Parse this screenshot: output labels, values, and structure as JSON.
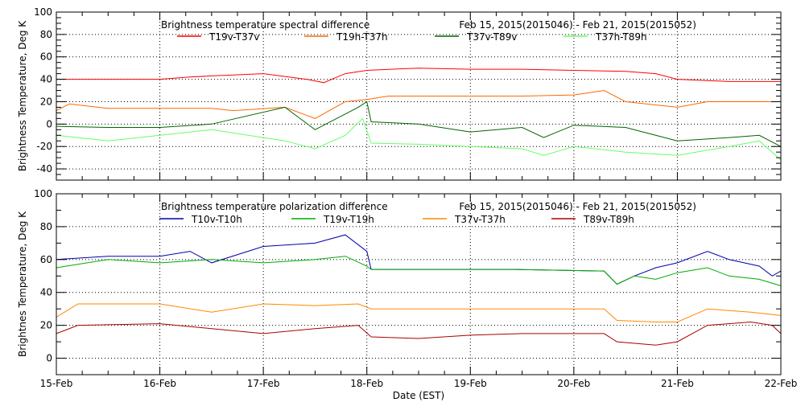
{
  "xlabel": "Date (EST)",
  "x_ticks": [
    "15-Feb",
    "16-Feb",
    "17-Feb",
    "18-Feb",
    "19-Feb",
    "20-Feb",
    "21-Feb",
    "22-Feb"
  ],
  "chart_data": [
    {
      "type": "line",
      "title": "Brightness temperature spectral difference",
      "date_range": "Feb 15, 2015(2015046) - Feb 21, 2015(2015052)",
      "ylabel": "Brightness Temperature, Deg K",
      "xlim": [
        "2015-02-15T00:00",
        "2015-02-22T00:00"
      ],
      "ylim": [
        -50,
        100
      ],
      "y_ticks": [
        "100",
        "80",
        "60",
        "40",
        "20",
        "0",
        "-20",
        "-40"
      ],
      "grid": true,
      "legend_placement": "top",
      "series": [
        {
          "name": "T19v-T37v",
          "color": "#ff0000",
          "points": [
            [
              "2015-02-15T00:00",
              40
            ],
            [
              "2015-02-15T12:00",
              40
            ],
            [
              "2015-02-16T00:00",
              40
            ],
            [
              "2015-02-16T07:00",
              42
            ],
            [
              "2015-02-16T12:00",
              43
            ],
            [
              "2015-02-17T00:00",
              45
            ],
            [
              "2015-02-17T10:00",
              40
            ],
            [
              "2015-02-17T14:00",
              37
            ],
            [
              "2015-02-17T19:00",
              45
            ],
            [
              "2015-02-18T00:00",
              48
            ],
            [
              "2015-02-18T12:00",
              50
            ],
            [
              "2015-02-19T00:00",
              49
            ],
            [
              "2015-02-19T12:00",
              49
            ],
            [
              "2015-02-20T00:00",
              48
            ],
            [
              "2015-02-20T12:00",
              47
            ],
            [
              "2015-02-20T19:00",
              45
            ],
            [
              "2015-02-21T00:00",
              40
            ],
            [
              "2015-02-21T12:00",
              38
            ],
            [
              "2015-02-22T00:00",
              38
            ]
          ]
        },
        {
          "name": "T19h-T37h",
          "color": "#ff6600",
          "points": [
            [
              "2015-02-15T00:00",
              12
            ],
            [
              "2015-02-15T03:00",
              18
            ],
            [
              "2015-02-15T12:00",
              14
            ],
            [
              "2015-02-16T00:00",
              14
            ],
            [
              "2015-02-16T12:00",
              14
            ],
            [
              "2015-02-16T17:00",
              12
            ],
            [
              "2015-02-17T05:00",
              15
            ],
            [
              "2015-02-17T12:00",
              5
            ],
            [
              "2015-02-17T19:00",
              20
            ],
            [
              "2015-02-18T00:00",
              22
            ],
            [
              "2015-02-18T05:00",
              25
            ],
            [
              "2015-02-18T12:00",
              25
            ],
            [
              "2015-02-19T00:00",
              25
            ],
            [
              "2015-02-19T12:00",
              25
            ],
            [
              "2015-02-20T00:00",
              26
            ],
            [
              "2015-02-20T07:00",
              30
            ],
            [
              "2015-02-20T12:00",
              20
            ],
            [
              "2015-02-21T00:00",
              15
            ],
            [
              "2015-02-21T07:00",
              20
            ],
            [
              "2015-02-22T00:00",
              20
            ]
          ]
        },
        {
          "name": "T37v-T89v",
          "color": "#006400",
          "points": [
            [
              "2015-02-15T00:00",
              -2
            ],
            [
              "2015-02-15T12:00",
              -3
            ],
            [
              "2015-02-16T00:00",
              -3
            ],
            [
              "2015-02-16T12:00",
              0
            ],
            [
              "2015-02-17T05:00",
              15
            ],
            [
              "2015-02-17T12:00",
              -5
            ],
            [
              "2015-02-17T22:00",
              15
            ],
            [
              "2015-02-18T00:00",
              20
            ],
            [
              "2015-02-18T01:00",
              2
            ],
            [
              "2015-02-18T12:00",
              0
            ],
            [
              "2015-02-19T00:00",
              -7
            ],
            [
              "2015-02-19T12:00",
              -3
            ],
            [
              "2015-02-19T17:00",
              -12
            ],
            [
              "2015-02-20T00:00",
              -1
            ],
            [
              "2015-02-20T12:00",
              -3
            ],
            [
              "2015-02-21T00:00",
              -15
            ],
            [
              "2015-02-21T12:00",
              -12
            ],
            [
              "2015-02-21T19:00",
              -10
            ],
            [
              "2015-02-22T00:00",
              -20
            ]
          ]
        },
        {
          "name": "T37h-T89h",
          "color": "#66ff66",
          "points": [
            [
              "2015-02-15T00:00",
              -10
            ],
            [
              "2015-02-15T12:00",
              -15
            ],
            [
              "2015-02-16T00:00",
              -10
            ],
            [
              "2015-02-16T12:00",
              -5
            ],
            [
              "2015-02-17T05:00",
              -15
            ],
            [
              "2015-02-17T12:00",
              -22
            ],
            [
              "2015-02-17T19:00",
              -10
            ],
            [
              "2015-02-17T23:00",
              5
            ],
            [
              "2015-02-18T01:00",
              -17
            ],
            [
              "2015-02-18T12:00",
              -18
            ],
            [
              "2015-02-19T00:00",
              -20
            ],
            [
              "2015-02-19T12:00",
              -22
            ],
            [
              "2015-02-19T17:00",
              -28
            ],
            [
              "2015-02-20T00:00",
              -20
            ],
            [
              "2015-02-20T12:00",
              -25
            ],
            [
              "2015-02-21T00:00",
              -28
            ],
            [
              "2015-02-21T12:00",
              -20
            ],
            [
              "2015-02-21T19:00",
              -15
            ],
            [
              "2015-02-22T00:00",
              -32
            ]
          ]
        }
      ]
    },
    {
      "type": "line",
      "title": "Brightness temperature polarization difference",
      "date_range": "Feb 15, 2015(2015046) - Feb 21, 2015(2015052)",
      "ylabel": "Brightnes Temperature, Deg K",
      "xlim": [
        "2015-02-15T00:00",
        "2015-02-22T00:00"
      ],
      "ylim": [
        -10,
        100
      ],
      "y_ticks": [
        "100",
        "80",
        "60",
        "40",
        "20",
        "0"
      ],
      "grid": true,
      "legend_placement": "top",
      "series": [
        {
          "name": "T10v-T10h",
          "color": "#0000aa",
          "points": [
            [
              "2015-02-15T00:00",
              60
            ],
            [
              "2015-02-15T12:00",
              62
            ],
            [
              "2015-02-16T00:00",
              62
            ],
            [
              "2015-02-16T07:00",
              65
            ],
            [
              "2015-02-16T12:00",
              58
            ],
            [
              "2015-02-17T00:00",
              68
            ],
            [
              "2015-02-17T12:00",
              70
            ],
            [
              "2015-02-17T19:00",
              75
            ],
            [
              "2015-02-18T00:00",
              65
            ],
            [
              "2015-02-18T01:00",
              54
            ],
            [
              "2015-02-19T00:00",
              54
            ],
            [
              "2015-02-19T10:00",
              54
            ],
            [
              "2015-02-20T07:00",
              53
            ],
            [
              "2015-02-20T10:00",
              45
            ],
            [
              "2015-02-20T14:00",
              50
            ],
            [
              "2015-02-20T19:00",
              55
            ],
            [
              "2015-02-21T00:00",
              58
            ],
            [
              "2015-02-21T07:00",
              65
            ],
            [
              "2015-02-21T12:00",
              60
            ],
            [
              "2015-02-21T19:00",
              56
            ],
            [
              "2015-02-21T22:00",
              50
            ],
            [
              "2015-02-22T00:00",
              53
            ]
          ]
        },
        {
          "name": "T19v-T19h",
          "color": "#00aa00",
          "points": [
            [
              "2015-02-15T00:00",
              55
            ],
            [
              "2015-02-15T12:00",
              60
            ],
            [
              "2015-02-16T00:00",
              58
            ],
            [
              "2015-02-16T12:00",
              60
            ],
            [
              "2015-02-17T00:00",
              58
            ],
            [
              "2015-02-17T12:00",
              60
            ],
            [
              "2015-02-17T19:00",
              62
            ],
            [
              "2015-02-18T00:00",
              56
            ],
            [
              "2015-02-18T01:00",
              54
            ],
            [
              "2015-02-19T00:00",
              54
            ],
            [
              "2015-02-19T10:00",
              54
            ],
            [
              "2015-02-20T07:00",
              53
            ],
            [
              "2015-02-20T10:00",
              45
            ],
            [
              "2015-02-20T14:00",
              50
            ],
            [
              "2015-02-20T19:00",
              48
            ],
            [
              "2015-02-21T00:00",
              52
            ],
            [
              "2015-02-21T07:00",
              55
            ],
            [
              "2015-02-21T12:00",
              50
            ],
            [
              "2015-02-21T19:00",
              48
            ],
            [
              "2015-02-22T00:00",
              44
            ]
          ]
        },
        {
          "name": "T37v-T37h",
          "color": "#ff8800",
          "points": [
            [
              "2015-02-15T00:00",
              25
            ],
            [
              "2015-02-15T05:00",
              33
            ],
            [
              "2015-02-15T12:00",
              33
            ],
            [
              "2015-02-16T00:00",
              33
            ],
            [
              "2015-02-16T12:00",
              28
            ],
            [
              "2015-02-17T00:00",
              33
            ],
            [
              "2015-02-17T12:00",
              32
            ],
            [
              "2015-02-17T22:00",
              33
            ],
            [
              "2015-02-18T01:00",
              30
            ],
            [
              "2015-02-19T00:00",
              30
            ],
            [
              "2015-02-20T00:00",
              30
            ],
            [
              "2015-02-20T07:00",
              30
            ],
            [
              "2015-02-20T10:00",
              23
            ],
            [
              "2015-02-20T19:00",
              22
            ],
            [
              "2015-02-21T00:00",
              22
            ],
            [
              "2015-02-21T07:00",
              30
            ],
            [
              "2015-02-21T17:00",
              28
            ],
            [
              "2015-02-22T00:00",
              26
            ]
          ]
        },
        {
          "name": "T89v-T89h",
          "color": "#aa0000",
          "points": [
            [
              "2015-02-15T00:00",
              15
            ],
            [
              "2015-02-15T05:00",
              20
            ],
            [
              "2015-02-16T00:00",
              21
            ],
            [
              "2015-02-16T12:00",
              18
            ],
            [
              "2015-02-17T00:00",
              15
            ],
            [
              "2015-02-17T12:00",
              18
            ],
            [
              "2015-02-17T22:00",
              20
            ],
            [
              "2015-02-18T01:00",
              13
            ],
            [
              "2015-02-18T12:00",
              12
            ],
            [
              "2015-02-19T00:00",
              14
            ],
            [
              "2015-02-19T12:00",
              15
            ],
            [
              "2015-02-20T07:00",
              15
            ],
            [
              "2015-02-20T10:00",
              10
            ],
            [
              "2015-02-20T19:00",
              8
            ],
            [
              "2015-02-21T00:00",
              10
            ],
            [
              "2015-02-21T07:00",
              20
            ],
            [
              "2015-02-21T17:00",
              22
            ],
            [
              "2015-02-21T22:00",
              20
            ],
            [
              "2015-02-22T00:00",
              15
            ]
          ]
        }
      ]
    }
  ]
}
